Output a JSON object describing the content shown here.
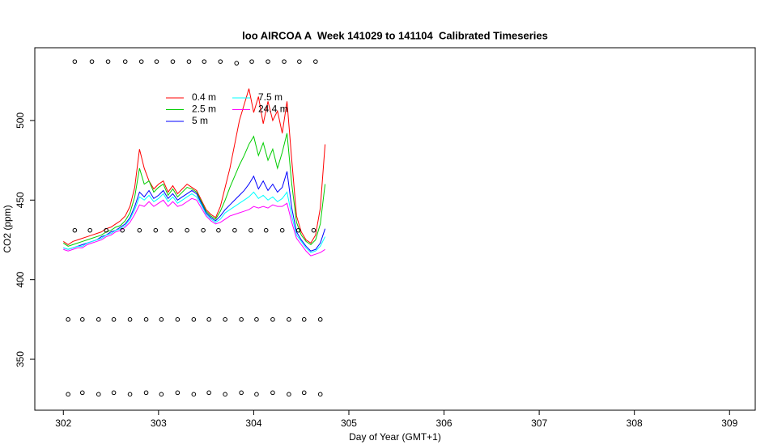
{
  "chart_data": {
    "type": "line",
    "title": "loo AIRCOA A  Week 141029 to 141104  Calibrated Timeseries",
    "x_label": "Day of Year (GMT+1)",
    "y_label": "CO2 (ppm)",
    "xlim": [
      301.7,
      309.27
    ],
    "ylim": [
      318,
      545.7
    ],
    "xticks": [
      302,
      303,
      304,
      305,
      306,
      307,
      308,
      309
    ],
    "yticks": [
      350,
      400,
      450,
      500
    ],
    "legend": "top-left",
    "x": [
      302.0,
      302.05,
      302.1,
      302.15,
      302.2,
      302.25,
      302.3,
      302.35,
      302.4,
      302.45,
      302.5,
      302.55,
      302.6,
      302.65,
      302.7,
      302.75,
      302.8,
      302.85,
      302.9,
      302.95,
      303.0,
      303.05,
      303.1,
      303.15,
      303.2,
      303.25,
      303.3,
      303.35,
      303.4,
      303.45,
      303.5,
      303.55,
      303.6,
      303.65,
      303.7,
      303.75,
      303.8,
      303.85,
      303.9,
      303.95,
      304.0,
      304.05,
      304.1,
      304.15,
      304.2,
      304.25,
      304.3,
      304.35,
      304.4,
      304.45,
      304.5,
      304.55,
      304.6,
      304.65,
      304.7,
      304.75
    ],
    "series": [
      {
        "name": "0.4 m",
        "color": "#ff0000",
        "values": [
          424,
          422,
          424,
          425,
          426,
          427,
          428,
          429,
          430,
          432,
          433,
          435,
          437,
          440,
          446,
          458,
          482,
          470,
          462,
          457,
          460,
          462,
          455,
          459,
          454,
          457,
          460,
          458,
          456,
          450,
          444,
          441,
          439,
          446,
          458,
          470,
          485,
          500,
          510,
          520,
          505,
          515,
          498,
          512,
          500,
          506,
          492,
          512,
          475,
          440,
          430,
          425,
          423,
          428,
          445,
          485
        ]
      },
      {
        "name": "2.5 m",
        "color": "#00cd00",
        "values": [
          423,
          421,
          422,
          423,
          424,
          425,
          426,
          427,
          428,
          430,
          431,
          433,
          434,
          437,
          442,
          452,
          470,
          460,
          462,
          455,
          458,
          460,
          453,
          457,
          452,
          455,
          458,
          457,
          455,
          449,
          443,
          440,
          438,
          443,
          450,
          458,
          465,
          472,
          478,
          485,
          490,
          478,
          486,
          475,
          482,
          470,
          480,
          492,
          460,
          436,
          428,
          424,
          422,
          425,
          435,
          460
        ]
      },
      {
        "name": "5 m",
        "color": "#0000ff",
        "values": [
          420,
          419,
          420,
          421,
          422,
          423,
          424,
          425,
          427,
          428,
          430,
          431,
          433,
          435,
          439,
          446,
          455,
          452,
          456,
          451,
          453,
          456,
          451,
          454,
          450,
          452,
          454,
          456,
          454,
          448,
          442,
          439,
          437,
          440,
          444,
          447,
          450,
          453,
          456,
          460,
          465,
          457,
          462,
          456,
          460,
          455,
          458,
          468,
          445,
          430,
          425,
          421,
          418,
          419,
          423,
          432
        ]
      },
      {
        "name": "7.5 m",
        "color": "#00ffff",
        "values": [
          420,
          419,
          420,
          421,
          421,
          423,
          424,
          425,
          426,
          428,
          429,
          431,
          432,
          434,
          438,
          444,
          452,
          450,
          453,
          449,
          451,
          454,
          449,
          452,
          448,
          450,
          452,
          454,
          452,
          447,
          441,
          438,
          436,
          438,
          442,
          444,
          446,
          448,
          450,
          452,
          455,
          451,
          453,
          450,
          452,
          449,
          451,
          455,
          440,
          428,
          424,
          420,
          417,
          418,
          421,
          427
        ]
      },
      {
        "name": "24.4 m",
        "color": "#ff00ff",
        "values": [
          419,
          418,
          419,
          420,
          420,
          422,
          423,
          424,
          425,
          427,
          428,
          430,
          431,
          433,
          436,
          441,
          447,
          446,
          449,
          446,
          448,
          450,
          446,
          449,
          446,
          447,
          449,
          451,
          450,
          445,
          440,
          437,
          435,
          436,
          438,
          440,
          441,
          442,
          443,
          444,
          446,
          445,
          446,
          445,
          447,
          446,
          446,
          448,
          436,
          426,
          422,
          418,
          415,
          416,
          417,
          419
        ]
      }
    ],
    "markers": [
      {
        "x": [
          302.12,
          302.3,
          302.47,
          302.65,
          302.82,
          302.98,
          303.15,
          303.32,
          303.48,
          303.65,
          303.82,
          303.98,
          304.15,
          304.32,
          304.48,
          304.65
        ],
        "y": [
          537,
          537,
          537,
          537,
          537,
          537,
          537,
          537,
          537,
          537,
          536,
          537,
          537,
          537,
          537,
          537
        ]
      },
      {
        "x": [
          302.12,
          302.28,
          302.45,
          302.62,
          302.8,
          302.97,
          303.13,
          303.3,
          303.47,
          303.63,
          303.8,
          303.97,
          304.13,
          304.3,
          304.47,
          304.63
        ],
        "y": [
          431,
          431,
          431,
          431,
          431,
          431,
          431,
          431,
          431,
          431,
          431,
          431,
          431,
          431,
          431,
          431
        ]
      },
      {
        "x": [
          302.05,
          302.2,
          302.37,
          302.53,
          302.7,
          302.87,
          303.03,
          303.2,
          303.37,
          303.53,
          303.7,
          303.87,
          304.03,
          304.2,
          304.37,
          304.53,
          304.7
        ],
        "y": [
          375,
          375,
          375,
          375,
          375,
          375,
          375,
          375,
          375,
          375,
          375,
          375,
          375,
          375,
          375,
          375,
          375
        ]
      },
      {
        "x": [
          302.05,
          302.2,
          302.37,
          302.53,
          302.7,
          302.87,
          303.03,
          303.2,
          303.37,
          303.53,
          303.7,
          303.87,
          304.03,
          304.2,
          304.37,
          304.53,
          304.7
        ],
        "y": [
          328,
          329,
          328,
          329,
          328,
          329,
          328,
          329,
          328,
          329,
          328,
          329,
          328,
          329,
          328,
          329,
          328
        ]
      }
    ]
  }
}
